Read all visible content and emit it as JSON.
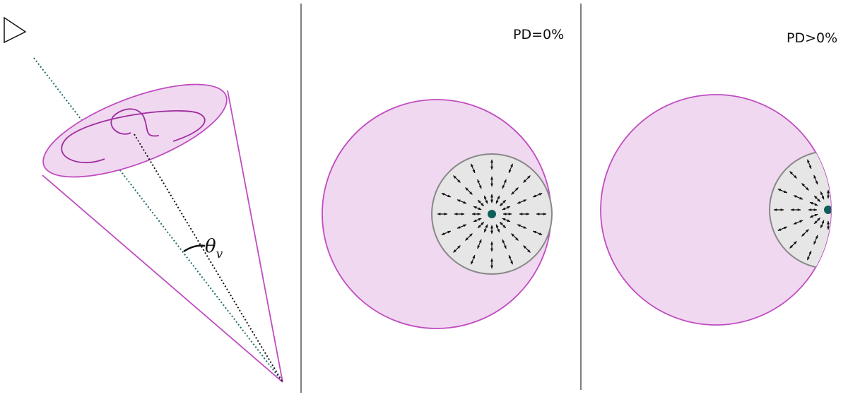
{
  "labels": {
    "theta": "θ",
    "theta_sub": "v",
    "pd_zero": "PD=0%",
    "pd_positive": "PD>0%"
  }
}
